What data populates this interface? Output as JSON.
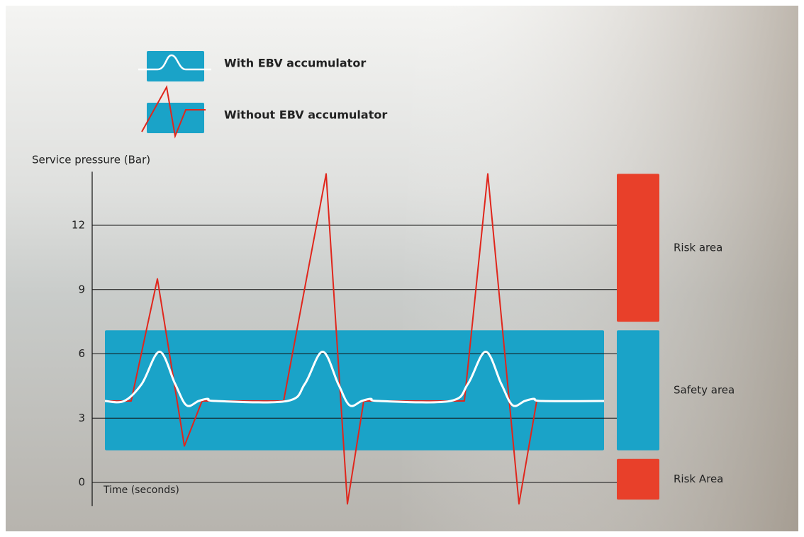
{
  "chart_data": {
    "type": "line",
    "y_axis_label": "Service pressure (Bar)",
    "x_axis_label": "Time (seconds)",
    "ylim": [
      -1.1,
      14.5
    ],
    "yticks": [
      0,
      3,
      6,
      9,
      12
    ],
    "xlim": [
      0,
      80
    ],
    "grid": true,
    "legend": "top-left",
    "safety_band": {
      "from": 1.5,
      "to": 7.1,
      "color": "#1aa3c8"
    },
    "zones": [
      {
        "label": "Risk area",
        "from": 7.5,
        "to": 14.4,
        "color": "#e8402a"
      },
      {
        "label": "Safety area",
        "from": 1.5,
        "to": 7.1,
        "color": "#1aa3c8"
      },
      {
        "label": "Risk Area",
        "from": -0.8,
        "to": 1.1,
        "color": "#e8402a"
      }
    ],
    "series": [
      {
        "name": "With EBV accumulator",
        "color": "#ffffff",
        "x": [
          1.8,
          4.5,
          7.0,
          9.5,
          11.7,
          13.3,
          15.0,
          16.3,
          17.5,
          27.5,
          30.0,
          32.5,
          34.7,
          36.3,
          38.0,
          39.3,
          40.5,
          50.5,
          53.0,
          55.5,
          57.7,
          59.3,
          61.0,
          62.3,
          63.5,
          72.2
        ],
        "values": [
          3.8,
          3.8,
          4.6,
          6.1,
          4.6,
          3.6,
          3.8,
          3.9,
          3.8,
          3.8,
          4.6,
          6.1,
          4.6,
          3.6,
          3.8,
          3.9,
          3.8,
          3.8,
          4.6,
          6.1,
          4.6,
          3.6,
          3.8,
          3.9,
          3.8,
          3.8
        ]
      },
      {
        "name": "Without EBV accumulator",
        "color": "#e0261c",
        "x": [
          1.8,
          5.5,
          9.2,
          13.0,
          15.5,
          27.0,
          33.0,
          36.0,
          38.3,
          50.0,
          52.5,
          55.8,
          60.2,
          62.7,
          64.5
        ],
        "values": [
          3.8,
          3.8,
          9.5,
          1.7,
          3.8,
          3.8,
          14.4,
          -1.0,
          3.8,
          3.8,
          3.8,
          14.4,
          -1.0,
          3.8,
          3.8
        ]
      }
    ]
  }
}
